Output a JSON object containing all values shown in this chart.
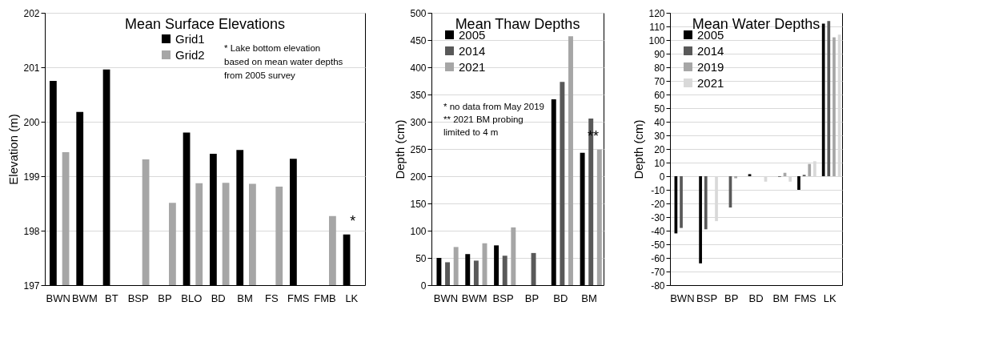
{
  "chart_data": [
    {
      "type": "bar",
      "title": "Mean Surface Elevations",
      "ylabel": "Elevation (m)",
      "categories": [
        "BWN",
        "BWM",
        "BT",
        "BSP",
        "BP",
        "BLO",
        "BD",
        "BM",
        "FS",
        "FMS",
        "FMB",
        "LK"
      ],
      "series": [
        {
          "name": "Grid1",
          "color": "#000000",
          "values": [
            200.75,
            200.18,
            200.96,
            null,
            null,
            199.8,
            199.41,
            199.48,
            null,
            199.32,
            null,
            197.93
          ]
        },
        {
          "name": "Grid2",
          "color": "#a6a6a6",
          "values": [
            199.44,
            null,
            null,
            199.31,
            198.51,
            198.87,
            198.88,
            198.86,
            198.81,
            null,
            198.27,
            null
          ]
        }
      ],
      "ylim": [
        197,
        202
      ],
      "yticks": [
        197,
        198,
        199,
        200,
        201,
        202
      ],
      "grid": "y",
      "legend": "top",
      "annotations": [
        "* Lake bottom elevation based on mean water depths from 2005 survey",
        {
          "text": "*",
          "x": "LK",
          "y": 197.93
        }
      ]
    },
    {
      "type": "bar",
      "title": "Mean Thaw Depths",
      "ylabel": "Depth (cm)",
      "categories": [
        "BWN",
        "BWM",
        "BSP",
        "BP",
        "BD",
        "BM"
      ],
      "series": [
        {
          "name": "2005",
          "color": "#000000",
          "values": [
            50,
            57,
            73,
            null,
            341,
            243
          ]
        },
        {
          "name": "2014",
          "color": "#595959",
          "values": [
            42,
            45,
            54,
            59,
            373,
            306
          ]
        },
        {
          "name": "2021",
          "color": "#a6a6a6",
          "values": [
            70,
            77,
            106,
            null,
            457,
            249
          ]
        }
      ],
      "ylim": [
        0,
        500
      ],
      "yticks": [
        0,
        50,
        100,
        150,
        200,
        250,
        300,
        350,
        400,
        450,
        500
      ],
      "grid": "y",
      "legend": "top left",
      "annotations": [
        "* no data from May 2019",
        "** 2021 BM probing limited to 4 m",
        {
          "text": "**",
          "x": "BM",
          "y": 249
        }
      ]
    },
    {
      "type": "bar",
      "title": "Mean Water Depths",
      "ylabel": "Depth (cm)",
      "categories": [
        "BWN",
        "BSP",
        "BP",
        "BD",
        "BM",
        "FMS",
        "LK"
      ],
      "series": [
        {
          "name": "2005",
          "color": "#000000",
          "values": [
            -42,
            -64,
            null,
            1.5,
            null,
            -10,
            112
          ]
        },
        {
          "name": "2014",
          "color": "#595959",
          "values": [
            -38,
            -39,
            -23,
            null,
            -0.5,
            1,
            114
          ]
        },
        {
          "name": "2019",
          "color": "#a6a6a6",
          "values": [
            null,
            null,
            -1.5,
            null,
            2.5,
            9,
            102
          ]
        },
        {
          "name": "2021",
          "color": "#d9d9d9",
          "values": [
            null,
            -33,
            null,
            -4,
            -4,
            11,
            104
          ]
        }
      ],
      "ylim": [
        -80,
        120
      ],
      "yticks": [
        -80,
        -70,
        -60,
        -50,
        -40,
        -30,
        -20,
        -10,
        0,
        10,
        20,
        30,
        40,
        50,
        60,
        70,
        80,
        90,
        100,
        110,
        120
      ],
      "grid": "y",
      "legend": "top left"
    }
  ]
}
